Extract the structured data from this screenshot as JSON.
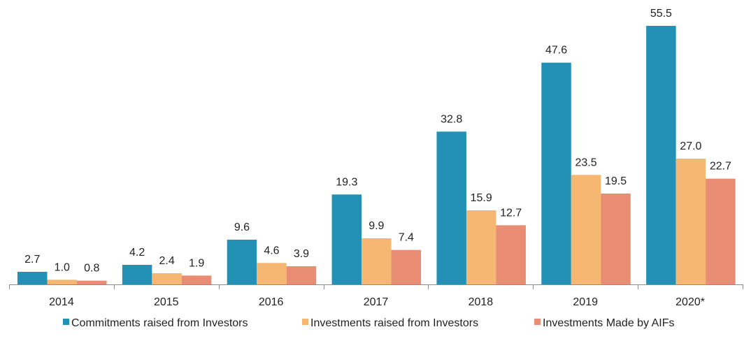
{
  "chart_data": {
    "type": "bar",
    "categories": [
      "2014",
      "2015",
      "2016",
      "2017",
      "2018",
      "2019",
      "2020*"
    ],
    "series": [
      {
        "name": "Commitments raised from Investors",
        "color": "#2390b6",
        "values": [
          2.7,
          4.2,
          9.6,
          19.3,
          32.8,
          47.6,
          55.5
        ],
        "labels": [
          "2.7",
          "4.2",
          "9.6",
          "19.3",
          "32.8",
          "47.6",
          "55.5"
        ]
      },
      {
        "name": "Investments raised from Investors",
        "color": "#f5b772",
        "values": [
          1.0,
          2.4,
          4.6,
          9.9,
          15.9,
          23.5,
          27.0
        ],
        "labels": [
          "1.0",
          "2.4",
          "4.6",
          "9.9",
          "15.9",
          "23.5",
          "27.0"
        ]
      },
      {
        "name": "Investments Made by AIFs",
        "color": "#e88c73",
        "values": [
          0.8,
          1.9,
          3.9,
          7.4,
          12.7,
          19.5,
          22.7
        ],
        "labels": [
          "0.8",
          "1.9",
          "3.9",
          "7.4",
          "12.7",
          "19.5",
          "22.7"
        ]
      }
    ],
    "ylim": [
      0,
      55.5
    ],
    "grid": false,
    "legend": "bottom",
    "title": "",
    "xlabel": "",
    "ylabel": ""
  }
}
